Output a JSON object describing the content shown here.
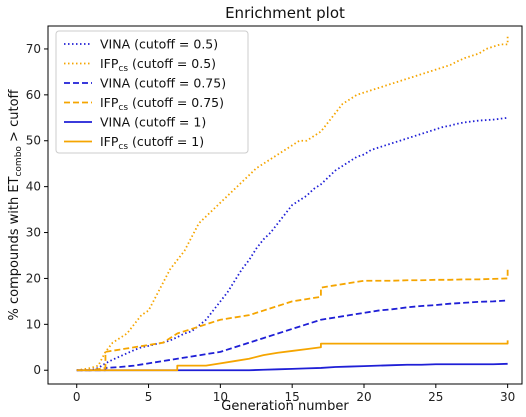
{
  "chart_data": {
    "type": "line",
    "title": "Enrichment plot",
    "xlabel": "Generation number",
    "ylabel": {
      "prefix": "% compounds with ET",
      "subscript": "combo",
      "suffix": " > cutoff"
    },
    "xlim": [
      -2,
      31
    ],
    "ylim": [
      -3,
      75
    ],
    "xticks": [
      0,
      5,
      10,
      15,
      20,
      25,
      30
    ],
    "yticks": [
      0,
      10,
      20,
      30,
      40,
      50,
      60,
      70
    ],
    "grid": false,
    "legend_position": "top-left",
    "series": [
      {
        "name": "VINA (cutoff = 0.5)",
        "name_main": "VINA",
        "name_sub": "",
        "name_rest": " (cutoff = 0.5)",
        "color": "#1f1fd6",
        "dash": "dotted",
        "points": [
          [
            0,
            0
          ],
          [
            1,
            0
          ],
          [
            1.5,
            0.5
          ],
          [
            2,
            1.5
          ],
          [
            2.5,
            2.3
          ],
          [
            3,
            3
          ],
          [
            3.5,
            3.7
          ],
          [
            4,
            4.4
          ],
          [
            4.5,
            5
          ],
          [
            5,
            5.3
          ],
          [
            5.5,
            5.7
          ],
          [
            6,
            6
          ],
          [
            6.5,
            6.5
          ],
          [
            7,
            7.2
          ],
          [
            7.5,
            8
          ],
          [
            8,
            8.5
          ],
          [
            8.5,
            9.7
          ],
          [
            9,
            11
          ],
          [
            9.5,
            13
          ],
          [
            10,
            15
          ],
          [
            10.5,
            17
          ],
          [
            11,
            19.5
          ],
          [
            11.5,
            22
          ],
          [
            12,
            24
          ],
          [
            12.5,
            26.5
          ],
          [
            13,
            28.5
          ],
          [
            13.5,
            30
          ],
          [
            14,
            32
          ],
          [
            14.5,
            34
          ],
          [
            15,
            36
          ],
          [
            15.5,
            37
          ],
          [
            16,
            38
          ],
          [
            16.5,
            39.5
          ],
          [
            17,
            40.5
          ],
          [
            17.5,
            42
          ],
          [
            18,
            43.5
          ],
          [
            18.5,
            44.5
          ],
          [
            19,
            45.5
          ],
          [
            19.5,
            46.5
          ],
          [
            20,
            47
          ],
          [
            20.5,
            48
          ],
          [
            21,
            48.5
          ],
          [
            21.5,
            49
          ],
          [
            22,
            49.5
          ],
          [
            22.5,
            50
          ],
          [
            23,
            50.5
          ],
          [
            23.5,
            51
          ],
          [
            24,
            51.5
          ],
          [
            24.5,
            52
          ],
          [
            25,
            52.5
          ],
          [
            25.5,
            53
          ],
          [
            26,
            53.3
          ],
          [
            26.5,
            53.7
          ],
          [
            27,
            54
          ],
          [
            27.5,
            54.2
          ],
          [
            28,
            54.4
          ],
          [
            28.5,
            54.5
          ],
          [
            29,
            54.6
          ],
          [
            29.5,
            54.8
          ],
          [
            30,
            55
          ]
        ]
      },
      {
        "name": "IFPcs (cutoff = 0.5)",
        "name_main": "IFP",
        "name_sub": "cs",
        "name_rest": " (cutoff = 0.5)",
        "color": "#f5a500",
        "dash": "dotted",
        "points": [
          [
            0,
            0
          ],
          [
            1,
            0.5
          ],
          [
            1.5,
            1
          ],
          [
            2,
            4
          ],
          [
            2.5,
            6
          ],
          [
            3,
            7
          ],
          [
            3.5,
            8
          ],
          [
            4,
            10
          ],
          [
            4.5,
            12
          ],
          [
            5,
            13
          ],
          [
            5.5,
            16
          ],
          [
            6,
            19
          ],
          [
            6.5,
            22
          ],
          [
            7,
            24
          ],
          [
            7.5,
            26
          ],
          [
            8,
            29
          ],
          [
            8.5,
            32
          ],
          [
            9,
            33.5
          ],
          [
            9.5,
            35
          ],
          [
            10,
            36.5
          ],
          [
            10.5,
            38
          ],
          [
            11,
            39.5
          ],
          [
            11.5,
            41
          ],
          [
            12,
            42.5
          ],
          [
            12.5,
            44
          ],
          [
            13,
            45
          ],
          [
            13.5,
            46
          ],
          [
            14,
            47
          ],
          [
            14.5,
            48
          ],
          [
            15,
            49
          ],
          [
            15.5,
            50
          ],
          [
            16,
            50
          ],
          [
            16.5,
            51
          ],
          [
            17,
            52
          ],
          [
            17.5,
            54
          ],
          [
            18,
            56
          ],
          [
            18.5,
            58
          ],
          [
            19,
            59
          ],
          [
            19.5,
            60
          ],
          [
            20,
            60.5
          ],
          [
            20.5,
            61
          ],
          [
            21,
            61.5
          ],
          [
            21.5,
            62
          ],
          [
            22,
            62.5
          ],
          [
            22.5,
            63
          ],
          [
            23,
            63.5
          ],
          [
            23.5,
            64
          ],
          [
            24,
            64.5
          ],
          [
            24.5,
            65
          ],
          [
            25,
            65.5
          ],
          [
            25.5,
            66
          ],
          [
            26,
            66.5
          ],
          [
            26.5,
            67.3
          ],
          [
            27,
            68
          ],
          [
            27.5,
            68.5
          ],
          [
            28,
            69
          ],
          [
            28.5,
            70
          ],
          [
            29,
            70.5
          ],
          [
            29.5,
            71
          ],
          [
            30,
            71
          ],
          [
            30,
            73
          ]
        ]
      },
      {
        "name": "VINA (cutoff = 0.75)",
        "name_main": "VINA",
        "name_sub": "",
        "name_rest": " (cutoff = 0.75)",
        "color": "#1f1fd6",
        "dash": "dashed",
        "points": [
          [
            0,
            0
          ],
          [
            2,
            0
          ],
          [
            2,
            0.5
          ],
          [
            3,
            0.7
          ],
          [
            4,
            1
          ],
          [
            5,
            1.5
          ],
          [
            6,
            2
          ],
          [
            7,
            2.5
          ],
          [
            8,
            3
          ],
          [
            9,
            3.5
          ],
          [
            10,
            4
          ],
          [
            11,
            5
          ],
          [
            12,
            6
          ],
          [
            13,
            7
          ],
          [
            14,
            8
          ],
          [
            15,
            9
          ],
          [
            16,
            10
          ],
          [
            17,
            11
          ],
          [
            18,
            11.5
          ],
          [
            19,
            12
          ],
          [
            20,
            12.5
          ],
          [
            21,
            13
          ],
          [
            22,
            13.3
          ],
          [
            23,
            13.7
          ],
          [
            24,
            14
          ],
          [
            25,
            14.2
          ],
          [
            26,
            14.5
          ],
          [
            27,
            14.7
          ],
          [
            28,
            14.9
          ],
          [
            29,
            15
          ],
          [
            30,
            15.2
          ]
        ]
      },
      {
        "name": "IFPcs (cutoff = 0.75)",
        "name_main": "IFP",
        "name_sub": "cs",
        "name_rest": " (cutoff = 0.75)",
        "color": "#f5a500",
        "dash": "dashed",
        "points": [
          [
            0,
            0
          ],
          [
            1,
            0
          ],
          [
            2,
            0.5
          ],
          [
            2,
            4
          ],
          [
            3,
            4.5
          ],
          [
            4,
            5
          ],
          [
            5,
            5.5
          ],
          [
            6,
            6
          ],
          [
            7,
            8
          ],
          [
            8,
            9
          ],
          [
            9,
            10
          ],
          [
            10,
            11
          ],
          [
            11,
            11.5
          ],
          [
            12,
            12
          ],
          [
            13,
            13
          ],
          [
            14,
            14
          ],
          [
            15,
            15
          ],
          [
            16,
            15.5
          ],
          [
            17,
            16
          ],
          [
            17,
            18
          ],
          [
            18,
            18.5
          ],
          [
            19,
            19
          ],
          [
            20,
            19.5
          ],
          [
            21,
            19.5
          ],
          [
            22,
            19.5
          ],
          [
            23,
            19.6
          ],
          [
            24,
            19.6
          ],
          [
            25,
            19.7
          ],
          [
            26,
            19.7
          ],
          [
            27,
            19.8
          ],
          [
            28,
            19.8
          ],
          [
            29,
            19.9
          ],
          [
            30,
            20
          ],
          [
            30,
            22
          ]
        ]
      },
      {
        "name": "VINA (cutoff = 1)",
        "name_main": "VINA",
        "name_sub": "",
        "name_rest": " (cutoff = 1)",
        "color": "#1f1fd6",
        "dash": "solid",
        "points": [
          [
            0,
            0
          ],
          [
            12,
            0
          ],
          [
            13,
            0.1
          ],
          [
            14,
            0.2
          ],
          [
            15,
            0.3
          ],
          [
            16,
            0.4
          ],
          [
            17,
            0.5
          ],
          [
            18,
            0.7
          ],
          [
            19,
            0.8
          ],
          [
            20,
            0.9
          ],
          [
            21,
            1
          ],
          [
            22,
            1.1
          ],
          [
            23,
            1.2
          ],
          [
            24,
            1.2
          ],
          [
            25,
            1.3
          ],
          [
            26,
            1.3
          ],
          [
            27,
            1.3
          ],
          [
            28,
            1.3
          ],
          [
            29,
            1.3
          ],
          [
            30,
            1.4
          ]
        ]
      },
      {
        "name": "IFPcs (cutoff = 1)",
        "name_main": "IFP",
        "name_sub": "cs",
        "name_rest": " (cutoff = 1)",
        "color": "#f5a500",
        "dash": "solid",
        "points": [
          [
            0,
            0
          ],
          [
            7,
            0
          ],
          [
            7,
            1
          ],
          [
            9,
            1
          ],
          [
            10,
            1.5
          ],
          [
            11,
            2
          ],
          [
            12,
            2.5
          ],
          [
            13,
            3.3
          ],
          [
            14,
            3.8
          ],
          [
            15,
            4.2
          ],
          [
            16,
            4.6
          ],
          [
            17,
            5
          ],
          [
            17,
            5.8
          ],
          [
            20,
            5.8
          ],
          [
            25,
            5.8
          ],
          [
            30,
            5.8
          ],
          [
            30,
            6.5
          ]
        ]
      }
    ]
  }
}
